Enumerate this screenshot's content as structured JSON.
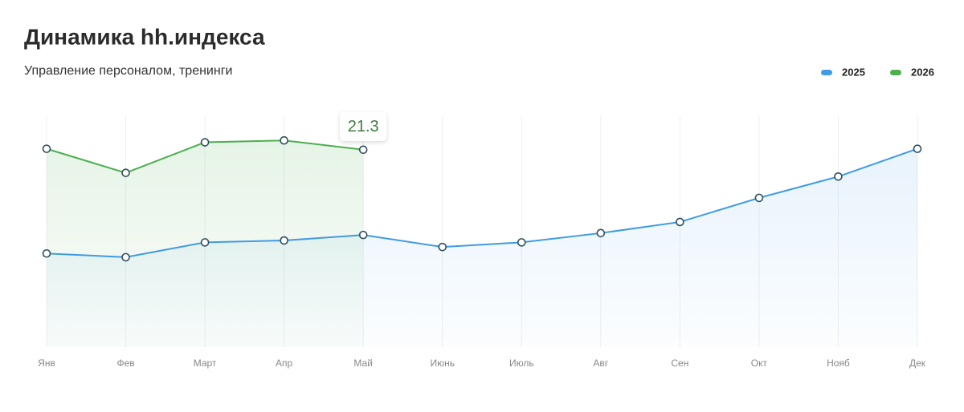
{
  "chart_data": {
    "type": "line",
    "title": "Динамика hh.индекса",
    "subtitle": "Управление персоналом, тренинги",
    "categories": [
      "Янв",
      "Фев",
      "Март",
      "Апр",
      "Май",
      "Июнь",
      "Июль",
      "Авг",
      "Сен",
      "Окт",
      "Нояб",
      "Дек"
    ],
    "series": [
      {
        "name": "2025",
        "color": "#3f9be3",
        "values": [
          10.1,
          9.7,
          11.3,
          11.5,
          12.1,
          10.8,
          11.3,
          12.3,
          13.5,
          16.1,
          18.4,
          21.4
        ]
      },
      {
        "name": "2026",
        "color": "#4caf50",
        "values": [
          21.4,
          18.8,
          22.1,
          22.3,
          21.3,
          null,
          null,
          null,
          null,
          null,
          null,
          null
        ]
      }
    ],
    "ylim": [
      0,
      25
    ],
    "grid": true
  }
}
